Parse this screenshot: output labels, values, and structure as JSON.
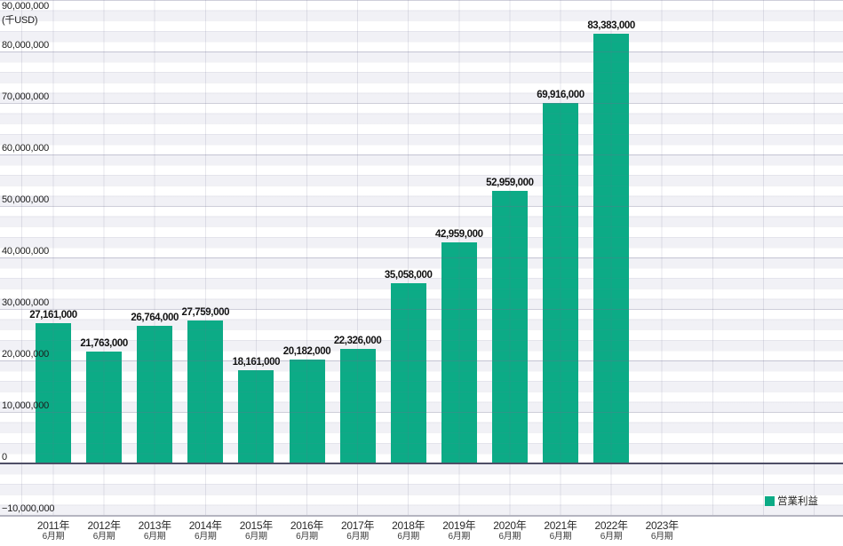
{
  "chart_data": {
    "type": "bar",
    "title": "",
    "unit_label": "(千USD)",
    "series": [
      {
        "name": "営業利益",
        "color": "#0cab86",
        "values": [
          27161000,
          21763000,
          26764000,
          27759000,
          18161000,
          20182000,
          22326000,
          35058000,
          42959000,
          52959000,
          69916000,
          83383000,
          null
        ]
      }
    ],
    "categories": [
      {
        "year": "2011年",
        "term": "6月期"
      },
      {
        "year": "2012年",
        "term": "6月期"
      },
      {
        "year": "2013年",
        "term": "6月期"
      },
      {
        "year": "2014年",
        "term": "6月期"
      },
      {
        "year": "2015年",
        "term": "6月期"
      },
      {
        "year": "2016年",
        "term": "6月期"
      },
      {
        "year": "2017年",
        "term": "6月期"
      },
      {
        "year": "2018年",
        "term": "6月期"
      },
      {
        "year": "2019年",
        "term": "6月期"
      },
      {
        "year": "2020年",
        "term": "6月期"
      },
      {
        "year": "2021年",
        "term": "6月期"
      },
      {
        "year": "2022年",
        "term": "6月期"
      },
      {
        "year": "2023年",
        "term": "6月期"
      }
    ],
    "value_labels": [
      "27,161,000",
      "21,763,000",
      "26,764,000",
      "27,759,000",
      "18,161,000",
      "20,182,000",
      "22,326,000",
      "35,058,000",
      "42,959,000",
      "52,959,000",
      "69,916,000",
      "83,383,000",
      ""
    ],
    "ylim": [
      -10000000,
      90000000
    ],
    "ytick_interval": 10000000,
    "ytick_labels": [
      "90,000,000",
      "80,000,000",
      "70,000,000",
      "60,000,000",
      "50,000,000",
      "40,000,000",
      "30,000,000",
      "20,000,000",
      "10,000,000",
      "0",
      "−10,000,000"
    ],
    "grid": {
      "minor_interval": 2000000,
      "vertical_lines": "category-centers"
    },
    "legend_position": "bottom-right"
  },
  "legend": {
    "label": "営業利益",
    "swatch_color": "#0cab86"
  },
  "colors": {
    "bar": "#0cab86",
    "band": "#f1f1f6",
    "grid_major": "#c9c9d6",
    "zero_line": "#4e4e66",
    "bottom_border": "#b4b4c0",
    "text": "#1c1c1c"
  }
}
